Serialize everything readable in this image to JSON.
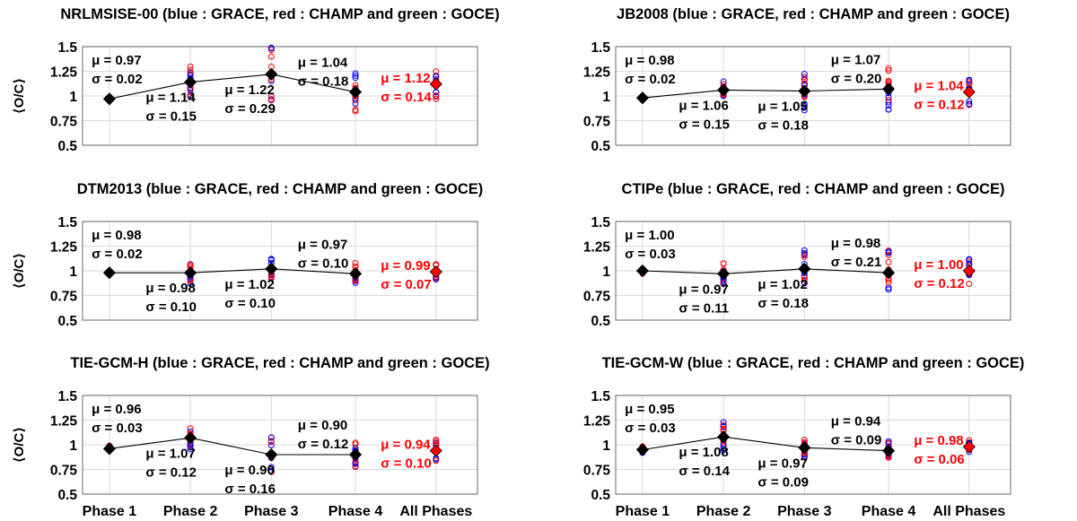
{
  "colors": {
    "GRACE": "#0000ff",
    "CHAMP": "#ff0000",
    "GOCE": "#00cc00",
    "mean_marker": "#000000",
    "all_phases_marker": "#ff0000",
    "all_phases_text": "#ff0000",
    "grid": "#d9d9d9"
  },
  "chart_data": [
    {
      "type": "scatter",
      "title": "NRLMSISE-00 (blue : GRACE, red : CHAMP and green : GOCE)",
      "ylabel": "⟨O/C⟩",
      "ylim": [
        0.5,
        1.5
      ],
      "yticks": [
        "1.5",
        "1.25",
        "1",
        "0.75",
        "0.5"
      ],
      "grid": true,
      "categories": [
        "Phase 1",
        "Phase 2",
        "Phase 3",
        "Phase 4",
        "All Phases"
      ],
      "phase_means": [
        0.97,
        1.14,
        1.22,
        1.04
      ],
      "phase_sigmas": [
        0.02,
        0.15,
        0.29,
        0.18
      ],
      "all_phases": {
        "mu": 1.12,
        "sigma": 0.14
      },
      "stats_text": [
        {
          "mu": "μ = 0.97",
          "sigma": "σ = 0.02"
        },
        {
          "mu": "μ = 1.14",
          "sigma": "σ = 0.15"
        },
        {
          "mu": "μ = 1.22",
          "sigma": "σ = 0.29"
        },
        {
          "mu": "μ = 1.04",
          "sigma": "σ = 0.18"
        }
      ],
      "all_phases_text": {
        "mu": "μ = 1.12",
        "sigma": "σ = 0.14"
      }
    },
    {
      "type": "scatter",
      "title": "JB2008 (blue : GRACE, red : CHAMP and green : GOCE)",
      "ylabel": "",
      "ylim": [
        0.5,
        1.5
      ],
      "yticks": [
        "1.5",
        "1.25",
        "1",
        "0.75",
        "0.5"
      ],
      "grid": true,
      "categories": [
        "Phase 1",
        "Phase 2",
        "Phase 3",
        "Phase 4",
        "All Phases"
      ],
      "phase_means": [
        0.98,
        1.06,
        1.05,
        1.07
      ],
      "phase_sigmas": [
        0.02,
        0.15,
        0.18,
        0.2
      ],
      "all_phases": {
        "mu": 1.04,
        "sigma": 0.12
      },
      "stats_text": [
        {
          "mu": "μ = 0.98",
          "sigma": "σ = 0.02"
        },
        {
          "mu": "μ = 1.06",
          "sigma": "σ = 0.15"
        },
        {
          "mu": "μ = 1.05",
          "sigma": "σ = 0.18"
        },
        {
          "mu": "μ = 1.07",
          "sigma": "σ = 0.20"
        }
      ],
      "all_phases_text": {
        "mu": "μ = 1.04",
        "sigma": "σ = 0.12"
      }
    },
    {
      "type": "scatter",
      "title": "DTM2013 (blue : GRACE, red : CHAMP and green : GOCE)",
      "ylabel": "⟨O/C⟩",
      "ylim": [
        0.5,
        1.5
      ],
      "yticks": [
        "1.5",
        "1.25",
        "1",
        "0.75",
        "0.5"
      ],
      "grid": true,
      "categories": [
        "Phase 1",
        "Phase 2",
        "Phase 3",
        "Phase 4",
        "All Phases"
      ],
      "phase_means": [
        0.98,
        0.98,
        1.02,
        0.97
      ],
      "phase_sigmas": [
        0.02,
        0.1,
        0.1,
        0.1
      ],
      "all_phases": {
        "mu": 0.99,
        "sigma": 0.07
      },
      "stats_text": [
        {
          "mu": "μ = 0.98",
          "sigma": "σ = 0.02"
        },
        {
          "mu": "μ = 0.98",
          "sigma": "σ = 0.10"
        },
        {
          "mu": "μ = 1.02",
          "sigma": "σ = 0.10"
        },
        {
          "mu": "μ = 0.97",
          "sigma": "σ = 0.10"
        }
      ],
      "all_phases_text": {
        "mu": "μ = 0.99",
        "sigma": "σ = 0.07"
      }
    },
    {
      "type": "scatter",
      "title": "CTIPe (blue : GRACE, red : CHAMP and green : GOCE)",
      "ylabel": "",
      "ylim": [
        0.5,
        1.5
      ],
      "yticks": [
        "1.5",
        "1.25",
        "1",
        "0.75",
        "0.5"
      ],
      "grid": true,
      "categories": [
        "Phase 1",
        "Phase 2",
        "Phase 3",
        "Phase 4",
        "All Phases"
      ],
      "phase_means": [
        1.0,
        0.97,
        1.02,
        0.98
      ],
      "phase_sigmas": [
        0.03,
        0.11,
        0.18,
        0.21
      ],
      "all_phases": {
        "mu": 1.0,
        "sigma": 0.12
      },
      "stats_text": [
        {
          "mu": "μ = 1.00",
          "sigma": "σ = 0.03"
        },
        {
          "mu": "μ = 0.97",
          "sigma": "σ = 0.11"
        },
        {
          "mu": "μ = 1.02",
          "sigma": "σ = 0.18"
        },
        {
          "mu": "μ = 0.98",
          "sigma": "σ = 0.21"
        }
      ],
      "all_phases_text": {
        "mu": "μ = 1.00",
        "sigma": "σ = 0.12"
      }
    },
    {
      "type": "scatter",
      "title": "TIE-GCM-H (blue : GRACE, red : CHAMP and green : GOCE)",
      "ylabel": "⟨O/C⟩",
      "ylim": [
        0.5,
        1.5
      ],
      "yticks": [
        "1.5",
        "1.25",
        "1",
        "0.75",
        "0.5"
      ],
      "grid": true,
      "categories": [
        "Phase 1",
        "Phase 2",
        "Phase 3",
        "Phase 4",
        "All Phases"
      ],
      "phase_means": [
        0.96,
        1.07,
        0.9,
        0.9
      ],
      "phase_sigmas": [
        0.03,
        0.12,
        0.16,
        0.12
      ],
      "all_phases": {
        "mu": 0.94,
        "sigma": 0.1
      },
      "stats_text": [
        {
          "mu": "μ = 0.96",
          "sigma": "σ = 0.03"
        },
        {
          "mu": "μ = 1.07",
          "sigma": "σ = 0.12"
        },
        {
          "mu": "μ = 0.90",
          "sigma": "σ = 0.16"
        },
        {
          "mu": "μ = 0.90",
          "sigma": "σ = 0.12"
        }
      ],
      "all_phases_text": {
        "mu": "μ = 0.94",
        "sigma": "σ = 0.10"
      }
    },
    {
      "type": "scatter",
      "title": "TIE-GCM-W (blue : GRACE, red : CHAMP and green : GOCE)",
      "ylabel": "",
      "ylim": [
        0.5,
        1.5
      ],
      "yticks": [
        "1.5",
        "1.25",
        "1",
        "0.75",
        "0.5"
      ],
      "grid": true,
      "categories": [
        "Phase 1",
        "Phase 2",
        "Phase 3",
        "Phase 4",
        "All Phases"
      ],
      "phase_means": [
        0.95,
        1.08,
        0.97,
        0.94
      ],
      "phase_sigmas": [
        0.03,
        0.14,
        0.09,
        0.09
      ],
      "all_phases": {
        "mu": 0.98,
        "sigma": 0.06
      },
      "stats_text": [
        {
          "mu": "μ = 0.95",
          "sigma": "σ = 0.03"
        },
        {
          "mu": "μ = 1.08",
          "sigma": "σ = 0.14"
        },
        {
          "mu": "μ = 0.97",
          "sigma": "σ = 0.09"
        },
        {
          "mu": "μ = 0.94",
          "sigma": "σ = 0.09"
        }
      ],
      "all_phases_text": {
        "mu": "μ = 0.98",
        "sigma": "σ = 0.06"
      }
    }
  ]
}
